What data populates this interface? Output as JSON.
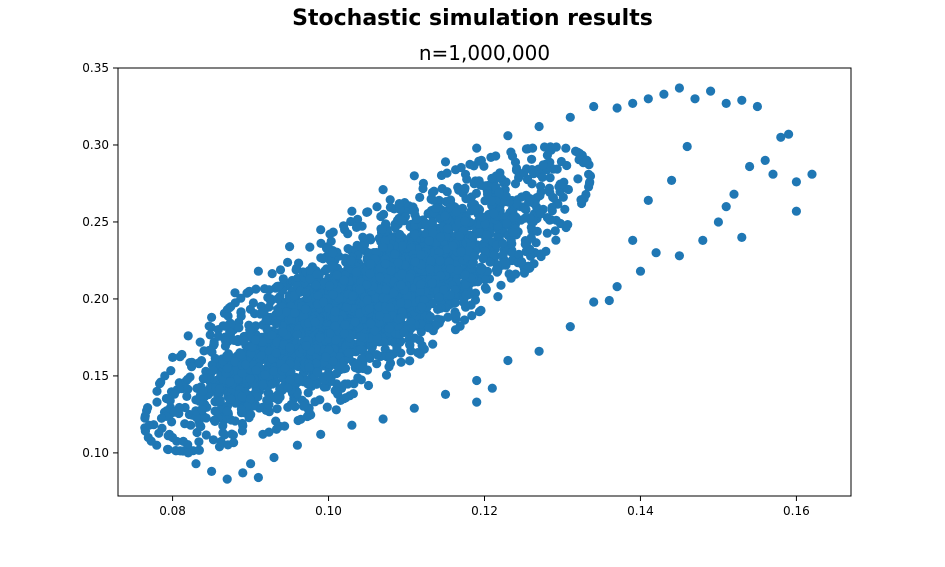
{
  "figure": {
    "suptitle": "Stochastic simulation results",
    "subtitle": "n=1,000,000"
  },
  "chart_data": {
    "type": "scatter",
    "title": "n=1,000,000",
    "xlabel": "",
    "ylabel": "",
    "xlim": [
      0.073,
      0.167
    ],
    "ylim": [
      0.072,
      0.35
    ],
    "xticks": [
      0.08,
      0.1,
      0.12,
      0.14,
      0.16
    ],
    "xtick_labels": [
      "0.08",
      "0.10",
      "0.12",
      "0.14",
      "0.16"
    ],
    "yticks": [
      0.1,
      0.15,
      0.2,
      0.25,
      0.3,
      0.35
    ],
    "ytick_labels": [
      "0.10",
      "0.15",
      "0.20",
      "0.25",
      "0.30",
      "0.35"
    ],
    "grid": false,
    "series": [
      {
        "color": "#1f77b4",
        "cloud": {
          "x_mean": 0.105,
          "y_mean": 0.2,
          "x_sd": 0.011,
          "y_sd": 0.038,
          "correlation": 0.82
        },
        "points": [
          [
            0.077,
            0.118
          ],
          [
            0.078,
            0.133
          ],
          [
            0.08,
            0.11
          ],
          [
            0.082,
            0.1
          ],
          [
            0.083,
            0.093
          ],
          [
            0.085,
            0.088
          ],
          [
            0.087,
            0.083
          ],
          [
            0.089,
            0.087
          ],
          [
            0.091,
            0.084
          ],
          [
            0.093,
            0.097
          ],
          [
            0.096,
            0.105
          ],
          [
            0.099,
            0.112
          ],
          [
            0.103,
            0.118
          ],
          [
            0.107,
            0.122
          ],
          [
            0.111,
            0.129
          ],
          [
            0.115,
            0.138
          ],
          [
            0.119,
            0.147
          ],
          [
            0.123,
            0.16
          ],
          [
            0.127,
            0.166
          ],
          [
            0.131,
            0.182
          ],
          [
            0.134,
            0.198
          ],
          [
            0.137,
            0.208
          ],
          [
            0.139,
            0.238
          ],
          [
            0.14,
            0.218
          ],
          [
            0.142,
            0.23
          ],
          [
            0.145,
            0.228
          ],
          [
            0.148,
            0.238
          ],
          [
            0.15,
            0.25
          ],
          [
            0.151,
            0.26
          ],
          [
            0.152,
            0.268
          ],
          [
            0.153,
            0.24
          ],
          [
            0.154,
            0.286
          ],
          [
            0.156,
            0.29
          ],
          [
            0.157,
            0.281
          ],
          [
            0.158,
            0.305
          ],
          [
            0.159,
            0.307
          ],
          [
            0.16,
            0.257
          ],
          [
            0.16,
            0.276
          ],
          [
            0.162,
            0.281
          ],
          [
            0.155,
            0.325
          ],
          [
            0.153,
            0.329
          ],
          [
            0.151,
            0.327
          ],
          [
            0.149,
            0.335
          ],
          [
            0.147,
            0.33
          ],
          [
            0.145,
            0.337
          ],
          [
            0.143,
            0.333
          ],
          [
            0.141,
            0.33
          ],
          [
            0.139,
            0.327
          ],
          [
            0.137,
            0.324
          ],
          [
            0.134,
            0.325
          ],
          [
            0.131,
            0.318
          ],
          [
            0.127,
            0.312
          ],
          [
            0.123,
            0.306
          ],
          [
            0.119,
            0.298
          ],
          [
            0.115,
            0.289
          ],
          [
            0.111,
            0.28
          ],
          [
            0.107,
            0.271
          ],
          [
            0.103,
            0.257
          ],
          [
            0.099,
            0.245
          ],
          [
            0.095,
            0.234
          ],
          [
            0.091,
            0.218
          ],
          [
            0.088,
            0.204
          ],
          [
            0.085,
            0.188
          ],
          [
            0.082,
            0.176
          ],
          [
            0.08,
            0.162
          ],
          [
            0.079,
            0.15
          ],
          [
            0.078,
            0.14
          ],
          [
            0.09,
            0.093
          ],
          [
            0.101,
            0.128
          ],
          [
            0.119,
            0.133
          ],
          [
            0.121,
            0.142
          ],
          [
            0.136,
            0.199
          ],
          [
            0.141,
            0.264
          ],
          [
            0.144,
            0.277
          ],
          [
            0.146,
            0.299
          ]
        ]
      }
    ]
  }
}
